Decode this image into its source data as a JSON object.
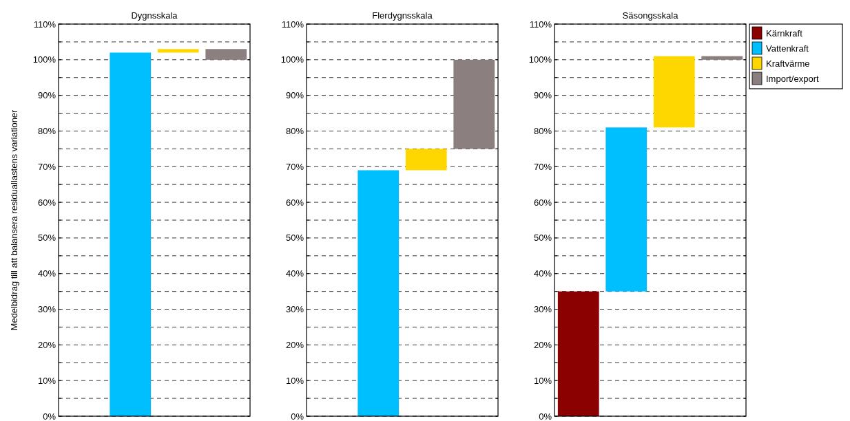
{
  "chart_data": [
    {
      "type": "bar",
      "title": "Dygnsskala",
      "ylabel": "Medelbidrag till att balansera residuallastens variationer",
      "categories": [
        null,
        null,
        null,
        null
      ],
      "ylim": [
        0,
        110
      ],
      "yticks": [
        {
          "value": 0,
          "label": "0%"
        },
        {
          "value": 5,
          "label": null
        },
        {
          "value": 10,
          "label": "10%"
        },
        {
          "value": 15,
          "label": null
        },
        {
          "value": 20,
          "label": "20%"
        },
        {
          "value": 25,
          "label": null
        },
        {
          "value": 30,
          "label": "30%"
        },
        {
          "value": 35,
          "label": null
        },
        {
          "value": 40,
          "label": "40%"
        },
        {
          "value": 45,
          "label": null
        },
        {
          "value": 50,
          "label": "50%"
        },
        {
          "value": 55,
          "label": null
        },
        {
          "value": 60,
          "label": "60%"
        },
        {
          "value": 65,
          "label": null
        },
        {
          "value": 70,
          "label": "70%"
        },
        {
          "value": 75,
          "label": null
        },
        {
          "value": 80,
          "label": "80%"
        },
        {
          "value": 85,
          "label": null
        },
        {
          "value": 90,
          "label": "90%"
        },
        {
          "value": 95,
          "label": null
        },
        {
          "value": 100,
          "label": "100%"
        },
        {
          "value": 105,
          "label": null
        },
        {
          "value": 110,
          "label": "110%"
        }
      ],
      "grid": "y",
      "legend": false,
      "series": [
        {
          "color": "#00bfff",
          "values": [
            null,
            102,
            null,
            null
          ],
          "base": [
            null,
            0,
            null,
            null
          ]
        },
        {
          "color": "#ffd700",
          "values": [
            null,
            null,
            1,
            null
          ],
          "base": [
            null,
            null,
            102,
            null
          ]
        },
        {
          "color": "#8b7f7f",
          "values": [
            null,
            null,
            null,
            -3
          ],
          "base": [
            null,
            null,
            null,
            103
          ]
        }
      ]
    },
    {
      "type": "bar",
      "title": "Flerdygnsskala",
      "categories": [
        null,
        null,
        null,
        null
      ],
      "ylim": [
        0,
        110
      ],
      "yticks": [
        {
          "value": 0,
          "label": "0%"
        },
        {
          "value": 5,
          "label": null
        },
        {
          "value": 10,
          "label": "10%"
        },
        {
          "value": 15,
          "label": null
        },
        {
          "value": 20,
          "label": "20%"
        },
        {
          "value": 25,
          "label": null
        },
        {
          "value": 30,
          "label": "30%"
        },
        {
          "value": 35,
          "label": null
        },
        {
          "value": 40,
          "label": "40%"
        },
        {
          "value": 45,
          "label": null
        },
        {
          "value": 50,
          "label": "50%"
        },
        {
          "value": 55,
          "label": null
        },
        {
          "value": 60,
          "label": "60%"
        },
        {
          "value": 65,
          "label": null
        },
        {
          "value": 70,
          "label": "70%"
        },
        {
          "value": 75,
          "label": null
        },
        {
          "value": 80,
          "label": "80%"
        },
        {
          "value": 85,
          "label": null
        },
        {
          "value": 90,
          "label": "90%"
        },
        {
          "value": 95,
          "label": null
        },
        {
          "value": 100,
          "label": "100%"
        },
        {
          "value": 105,
          "label": null
        },
        {
          "value": 110,
          "label": "110%"
        }
      ],
      "grid": "y",
      "legend": false,
      "series": [
        {
          "color": "#00bfff",
          "values": [
            null,
            69,
            null,
            null
          ],
          "base": [
            null,
            0,
            null,
            null
          ]
        },
        {
          "color": "#ffd700",
          "values": [
            null,
            null,
            6,
            null
          ],
          "base": [
            null,
            null,
            69,
            null
          ]
        },
        {
          "color": "#8b7f7f",
          "values": [
            null,
            null,
            null,
            25
          ],
          "base": [
            null,
            null,
            null,
            75
          ]
        }
      ]
    },
    {
      "type": "bar",
      "title": "Säsongsskala",
      "categories": [
        null,
        null,
        null,
        null
      ],
      "ylim": [
        0,
        110
      ],
      "yticks": [
        {
          "value": 0,
          "label": "0%"
        },
        {
          "value": 5,
          "label": null
        },
        {
          "value": 10,
          "label": "10%"
        },
        {
          "value": 15,
          "label": null
        },
        {
          "value": 20,
          "label": "20%"
        },
        {
          "value": 25,
          "label": null
        },
        {
          "value": 30,
          "label": "30%"
        },
        {
          "value": 35,
          "label": null
        },
        {
          "value": 40,
          "label": "40%"
        },
        {
          "value": 45,
          "label": null
        },
        {
          "value": 50,
          "label": "50%"
        },
        {
          "value": 55,
          "label": null
        },
        {
          "value": 60,
          "label": "60%"
        },
        {
          "value": 65,
          "label": null
        },
        {
          "value": 70,
          "label": "70%"
        },
        {
          "value": 75,
          "label": null
        },
        {
          "value": 80,
          "label": "80%"
        },
        {
          "value": 85,
          "label": null
        },
        {
          "value": 90,
          "label": "90%"
        },
        {
          "value": 95,
          "label": null
        },
        {
          "value": 100,
          "label": "100%"
        },
        {
          "value": 105,
          "label": null
        },
        {
          "value": 110,
          "label": "110%"
        }
      ],
      "grid": "y",
      "legend": "top right",
      "series": [
        {
          "name": "Kärnkraft",
          "color": "#8b0000",
          "values": [
            35,
            null,
            null,
            null
          ],
          "base": [
            0,
            null,
            null,
            null
          ]
        },
        {
          "name": "Vattenkraft",
          "color": "#00bfff",
          "values": [
            null,
            46,
            null,
            null
          ],
          "base": [
            null,
            35,
            null,
            null
          ]
        },
        {
          "name": "Kraftvärme",
          "color": "#ffd700",
          "values": [
            null,
            null,
            20,
            null
          ],
          "base": [
            null,
            null,
            81,
            null
          ]
        },
        {
          "name": "Import/export",
          "color": "#8b7f7f",
          "values": [
            null,
            null,
            null,
            -1
          ],
          "base": [
            null,
            null,
            null,
            101
          ]
        }
      ]
    }
  ]
}
